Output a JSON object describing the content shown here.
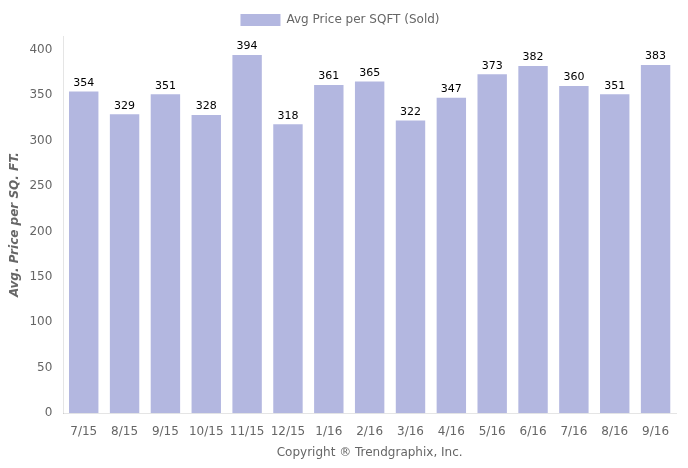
{
  "chart_data": {
    "type": "bar",
    "categories": [
      "7/15",
      "8/15",
      "9/15",
      "10/15",
      "11/15",
      "12/15",
      "1/16",
      "2/16",
      "3/16",
      "4/16",
      "5/16",
      "6/16",
      "7/16",
      "8/16",
      "9/16"
    ],
    "series": [
      {
        "name": "Avg Price per SQFT (Sold)",
        "color": "#b3b7e0",
        "values": [
          354,
          329,
          351,
          328,
          394,
          318,
          361,
          365,
          322,
          347,
          373,
          382,
          360,
          351,
          383
        ]
      }
    ],
    "xlabel": "Copyright ® Trendgraphix, Inc.",
    "ylabel": "Avg. Price per SQ. FT.",
    "ylim": [
      0,
      415
    ],
    "yticks": [
      0,
      50,
      100,
      150,
      200,
      250,
      300,
      350,
      400
    ],
    "grid": false,
    "legend": "top",
    "data_labels": true
  }
}
